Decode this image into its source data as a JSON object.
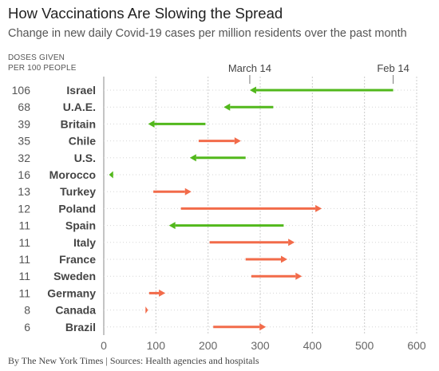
{
  "header": {
    "title": "How Vaccinations Are Slowing the Spread",
    "subtitle": "Change in new daily Covid-19 cases per million residents over the past month"
  },
  "doses_heading": [
    "DOSES GIVEN",
    "PER 100 PEOPLE"
  ],
  "footer": {
    "source": "By The New York Times | Sources: Health agencies and hospitals"
  },
  "colors": {
    "decrease": "#52b81c",
    "increase": "#f26b4a",
    "grid": "#cccccc"
  },
  "chart_data": {
    "type": "arrow",
    "title": "How Vaccinations Are Slowing the Spread",
    "subtitle": "Change in new daily Covid-19 cases per million residents over the past month",
    "xlim": [
      0,
      600
    ],
    "xticks": [
      0,
      100,
      200,
      300,
      400,
      500,
      600
    ],
    "grid": "vertical dotted",
    "date_labels": [
      {
        "label": "March 14",
        "x": 280
      },
      {
        "label": "Feb 14",
        "x": 555
      }
    ],
    "series": [
      {
        "country": "Israel",
        "doses": 106,
        "feb14": 555,
        "mar14": 280
      },
      {
        "country": "U.A.E.",
        "doses": 68,
        "feb14": 325,
        "mar14": 230
      },
      {
        "country": "Britain",
        "doses": 39,
        "feb14": 195,
        "mar14": 85
      },
      {
        "country": "Chile",
        "doses": 35,
        "feb14": 182,
        "mar14": 263
      },
      {
        "country": "U.S.",
        "doses": 32,
        "feb14": 272,
        "mar14": 165
      },
      {
        "country": "Morocco",
        "doses": 16,
        "feb14": 18,
        "mar14": 10
      },
      {
        "country": "Turkey",
        "doses": 13,
        "feb14": 95,
        "mar14": 168
      },
      {
        "country": "Poland",
        "doses": 12,
        "feb14": 148,
        "mar14": 418
      },
      {
        "country": "Spain",
        "doses": 11,
        "feb14": 345,
        "mar14": 125
      },
      {
        "country": "Italy",
        "doses": 11,
        "feb14": 203,
        "mar14": 366
      },
      {
        "country": "France",
        "doses": 11,
        "feb14": 272,
        "mar14": 352
      },
      {
        "country": "Sweden",
        "doses": 11,
        "feb14": 283,
        "mar14": 380
      },
      {
        "country": "Germany",
        "doses": 11,
        "feb14": 87,
        "mar14": 118
      },
      {
        "country": "Canada",
        "doses": 8,
        "feb14": 80,
        "mar14": 85
      },
      {
        "country": "Brazil",
        "doses": 6,
        "feb14": 210,
        "mar14": 311
      }
    ]
  }
}
